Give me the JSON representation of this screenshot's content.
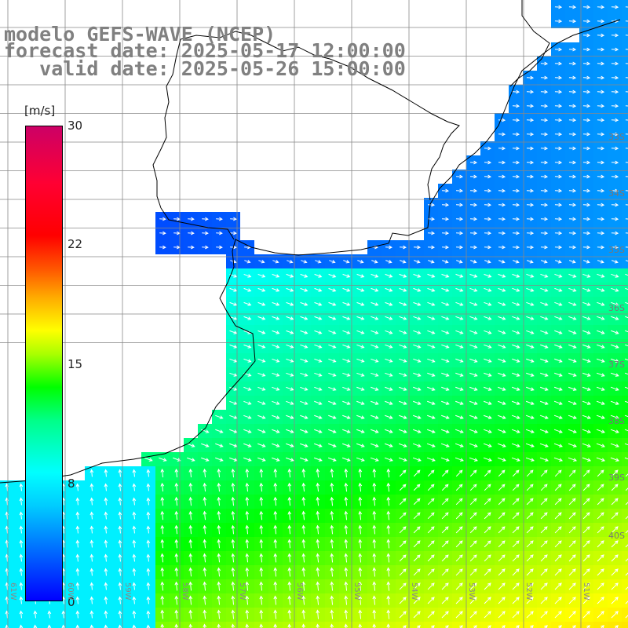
{
  "title": {
    "line1": "modelo GEFS-WAVE (NCEP)",
    "line2": "forecast date: 2025-05-17 12:00:00",
    "line3": "   valid date: 2025-05-26 15:00:00"
  },
  "colorbar": {
    "unit": "[m/s]",
    "ticks": [
      "30",
      "22",
      "15",
      "8",
      "0"
    ],
    "min": 0,
    "max": 30
  },
  "lat_labels": [
    "33S",
    "34S",
    "35S",
    "36S",
    "37S",
    "38S",
    "39S",
    "40S"
  ],
  "lon_labels": [
    "61W",
    "60W",
    "59W",
    "58W",
    "57W",
    "56W",
    "55W",
    "54W",
    "53W",
    "52W",
    "51W"
  ],
  "colors": {
    "land": "#ffffff",
    "grid": "#888888",
    "coast": "#000000",
    "arrow": "#ffffff"
  }
}
